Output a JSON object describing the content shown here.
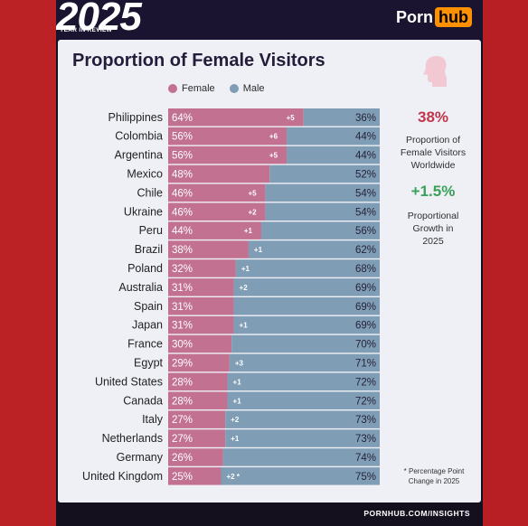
{
  "header": {
    "year": "2025",
    "year_subtitle": "YEAR IN REVIEW",
    "brand_part1": "Porn",
    "brand_part2": "hub"
  },
  "colors": {
    "female": "#c27191",
    "male": "#7f9db5",
    "female_text": "#ffffff",
    "male_text": "#26233a",
    "accent_red": "#c0354a",
    "accent_green": "#3aa05a"
  },
  "icons": {
    "silhouette": "female-profile-icon"
  },
  "side": {
    "stat1_value": "38%",
    "stat1_desc_1": "Proportion of",
    "stat1_desc_2": "Female Visitors",
    "stat1_desc_3": "Worldwide",
    "stat2_value": "+1.5%",
    "stat2_desc_1": "Proportional",
    "stat2_desc_2": "Growth in",
    "stat2_desc_3": "2025",
    "footnote_1": "* Percentage Point",
    "footnote_2": "Change in 2025"
  },
  "footer": {
    "url": "PORNHUB.COM/INSIGHTS"
  },
  "chart_data": {
    "type": "bar",
    "orientation": "horizontal-stacked-100",
    "title": "Proportion of Female Visitors",
    "legend": [
      "Female",
      "Male"
    ],
    "legend_position": "top",
    "categories": [
      "Philippines",
      "Colombia",
      "Argentina",
      "Mexico",
      "Chile",
      "Ukraine",
      "Peru",
      "Brazil",
      "Poland",
      "Australia",
      "Spain",
      "Japan",
      "France",
      "Egypt",
      "United States",
      "Canada",
      "Italy",
      "Netherlands",
      "Germany",
      "United Kingdom"
    ],
    "series": [
      {
        "name": "Female",
        "values": [
          64,
          56,
          56,
          48,
          46,
          46,
          44,
          38,
          32,
          31,
          31,
          31,
          30,
          29,
          28,
          28,
          27,
          27,
          26,
          25
        ]
      },
      {
        "name": "Male",
        "values": [
          36,
          44,
          44,
          52,
          54,
          54,
          56,
          62,
          68,
          69,
          69,
          69,
          70,
          71,
          72,
          72,
          73,
          73,
          74,
          75
        ]
      }
    ],
    "change_labels": [
      "+5",
      "+6",
      "+5",
      "",
      "+5",
      "+2",
      "+1",
      "+1",
      "+1",
      "+2",
      "",
      "+1",
      "",
      "+3",
      "+1",
      "+1",
      "+2",
      "+1",
      "",
      "+2 *"
    ],
    "value_suffix": "%"
  }
}
